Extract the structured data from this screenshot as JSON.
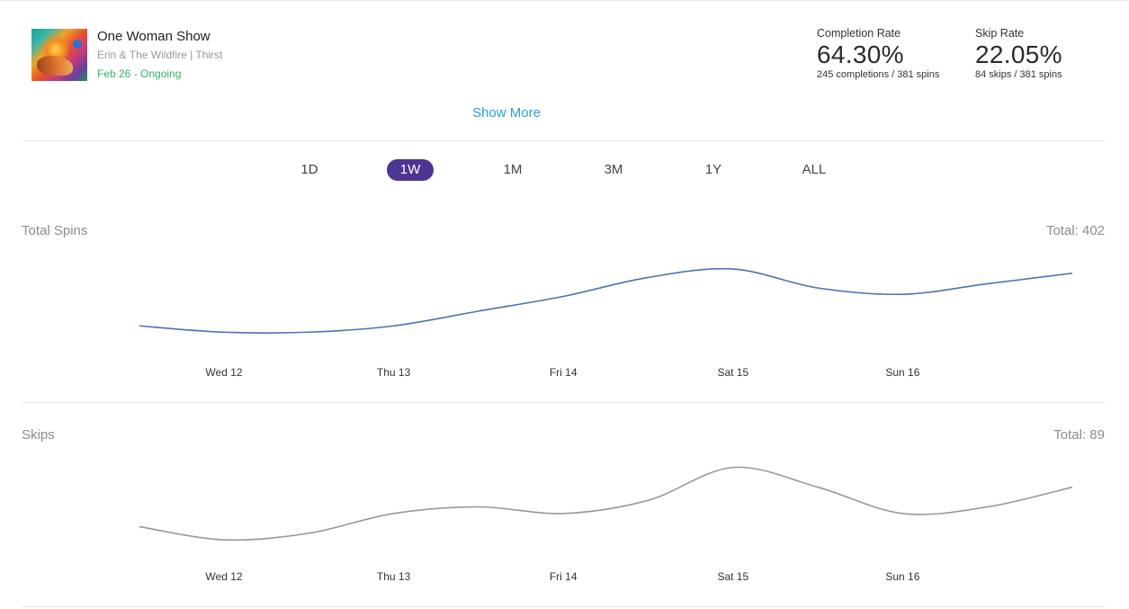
{
  "track": {
    "title": "One Woman Show",
    "subtitle": "Erin & The Wildfire | Thirst",
    "dates": "Feb 26 - Ongoing"
  },
  "metrics": {
    "completion": {
      "label": "Completion Rate",
      "value": "64.30%",
      "detail": "245 completions / 381 spins"
    },
    "skip": {
      "label": "Skip Rate",
      "value": "22.05%",
      "detail": "84 skips / 381 spins"
    }
  },
  "show_more": "Show More",
  "ranges": [
    "1D",
    "1W",
    "1M",
    "3M",
    "1Y",
    "ALL"
  ],
  "active_range": "1W",
  "colors": {
    "accent": "#4f3592",
    "link": "#2a9fd6",
    "date_green": "#2fb36e",
    "spins_line": "#4a73b3",
    "skips_line": "#999999"
  },
  "chart_data": [
    {
      "type": "line",
      "title": "Total Spins",
      "total_label": "Total: 402",
      "x_ticks": [
        "Wed 12",
        "Thu 13",
        "Fri 14",
        "Sat 15",
        "Sun 16"
      ],
      "x": [
        11.5,
        12,
        12.5,
        13,
        13.5,
        14,
        14.5,
        15,
        15.5,
        16,
        16.5,
        17
      ],
      "values": [
        34,
        31,
        31,
        34,
        41,
        48,
        57,
        61,
        52,
        49,
        54,
        59
      ],
      "ylim": [
        20,
        70
      ],
      "color": "#4a73b3"
    },
    {
      "type": "line",
      "title": "Skips",
      "total_label": "Total: 89",
      "x_ticks": [
        "Wed 12",
        "Thu 13",
        "Fri 14",
        "Sat 15",
        "Sun 16"
      ],
      "x": [
        11.5,
        12,
        12.5,
        13,
        13.5,
        14,
        14.5,
        15,
        15.5,
        16,
        16.5,
        17
      ],
      "values": [
        7,
        5,
        6,
        9,
        10,
        9,
        11,
        16,
        13,
        9,
        10,
        13
      ],
      "ylim": [
        2,
        18
      ],
      "color": "#999999"
    }
  ]
}
